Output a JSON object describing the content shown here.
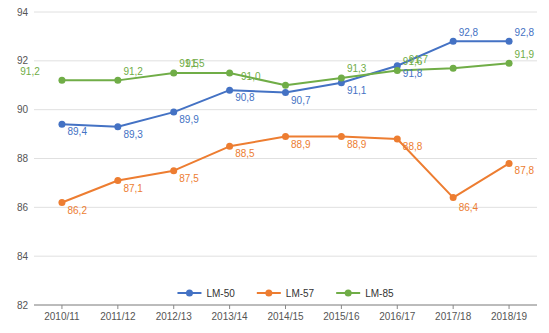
{
  "chart_data": {
    "type": "line",
    "categories": [
      "2010/11",
      "2011/12",
      "2012/13",
      "2013/14",
      "2014/15",
      "2015/16",
      "2016/17",
      "2017/18",
      "2018/19"
    ],
    "series": [
      {
        "name": "LM-50",
        "color": "#4472C4",
        "values": [
          89.4,
          89.3,
          89.9,
          90.8,
          90.7,
          91.1,
          91.8,
          92.8,
          92.8
        ],
        "value_labels": [
          "89,4",
          "89,3",
          "89,9",
          "90,8",
          "90,7",
          "91,1",
          "91,8",
          "92,8",
          "92,8"
        ]
      },
      {
        "name": "LM-57",
        "color": "#ED7D31",
        "values": [
          86.2,
          87.1,
          87.5,
          88.5,
          88.9,
          88.9,
          88.8,
          86.4,
          87.8
        ],
        "value_labels": [
          "86,2",
          "87,1",
          "87,5",
          "88,5",
          "88,9",
          "88,9",
          "88,8",
          "86,4",
          "87,8"
        ]
      },
      {
        "name": "LM-85",
        "color": "#70AD47",
        "values": [
          91.2,
          91.2,
          91.5,
          91.5,
          91.0,
          91.3,
          91.6,
          91.7,
          91.9
        ],
        "value_labels": [
          "91,2",
          "91,2",
          "91,5",
          "91,5",
          "91,0",
          "91,3",
          "91,6",
          "91,7",
          "91,9"
        ]
      }
    ],
    "ylim": [
      82,
      94
    ],
    "yticks": [
      82,
      84,
      86,
      88,
      90,
      92,
      94
    ],
    "grid": true,
    "legend": "bottom",
    "data_labels": true,
    "marker": "circle"
  }
}
